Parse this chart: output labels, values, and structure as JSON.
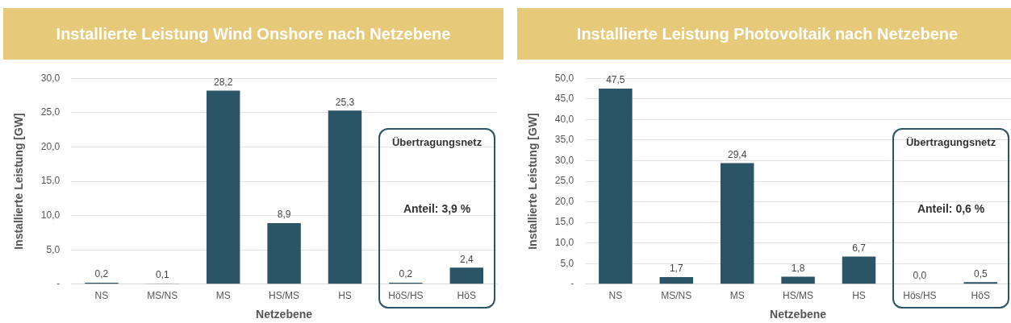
{
  "chart_data": [
    {
      "type": "bar",
      "title": "Installierte Leistung Wind Onshore nach Netzebene",
      "xlabel": "Netzebene",
      "ylabel": "Installierte Leistung [GW]",
      "categories": [
        "NS",
        "MS/NS",
        "MS",
        "HS/MS",
        "HS",
        "HöS/HS",
        "HöS"
      ],
      "values": [
        0.2,
        0.1,
        28.2,
        8.9,
        25.3,
        0.2,
        2.4
      ],
      "value_labels": [
        "0,2",
        "0,1",
        "28,2",
        "8,9",
        "25,3",
        "0,2",
        "2,4"
      ],
      "color": "#2b5566",
      "ylim": [
        0,
        30
      ],
      "yticks": [
        {
          "value": 0,
          "label": "-"
        },
        {
          "value": 5,
          "label": "5,0"
        },
        {
          "value": 10,
          "label": "10,0"
        },
        {
          "value": 15,
          "label": "15,0"
        },
        {
          "value": 20,
          "label": "20,0"
        },
        {
          "value": 25,
          "label": "25,0"
        },
        {
          "value": 30,
          "label": "30,0"
        }
      ],
      "grid": "y",
      "annotations": [
        "Übertragungsnetz",
        "Anteil: 3,9 %"
      ]
    },
    {
      "type": "bar",
      "title": "Installierte Leistung Photovoltaik nach Netzebene",
      "xlabel": "Netzebene",
      "ylabel": "Installierte Leistung [GW]",
      "categories": [
        "NS",
        "MS/NS",
        "MS",
        "HS/MS",
        "HS",
        "Hös/HS",
        "HöS"
      ],
      "values": [
        47.5,
        1.7,
        29.4,
        1.8,
        6.7,
        0.0,
        0.5
      ],
      "value_labels": [
        "47,5",
        "1,7",
        "29,4",
        "1,8",
        "6,7",
        "0,0",
        "0,5"
      ],
      "color": "#2b5566",
      "ylim": [
        0,
        50
      ],
      "yticks": [
        {
          "value": 0,
          "label": "-"
        },
        {
          "value": 5,
          "label": "5,0"
        },
        {
          "value": 10,
          "label": "10,0"
        },
        {
          "value": 15,
          "label": "15,0"
        },
        {
          "value": 20,
          "label": "20,0"
        },
        {
          "value": 25,
          "label": "25,0"
        },
        {
          "value": 30,
          "label": "30,0"
        },
        {
          "value": 35,
          "label": "35,0"
        },
        {
          "value": 40,
          "label": "40,0"
        },
        {
          "value": 45,
          "label": "45,0"
        },
        {
          "value": 50,
          "label": "50,0"
        }
      ],
      "grid": "y",
      "annotations": [
        "Übertragungsnetz",
        "Anteil: 0,6 %"
      ]
    }
  ]
}
